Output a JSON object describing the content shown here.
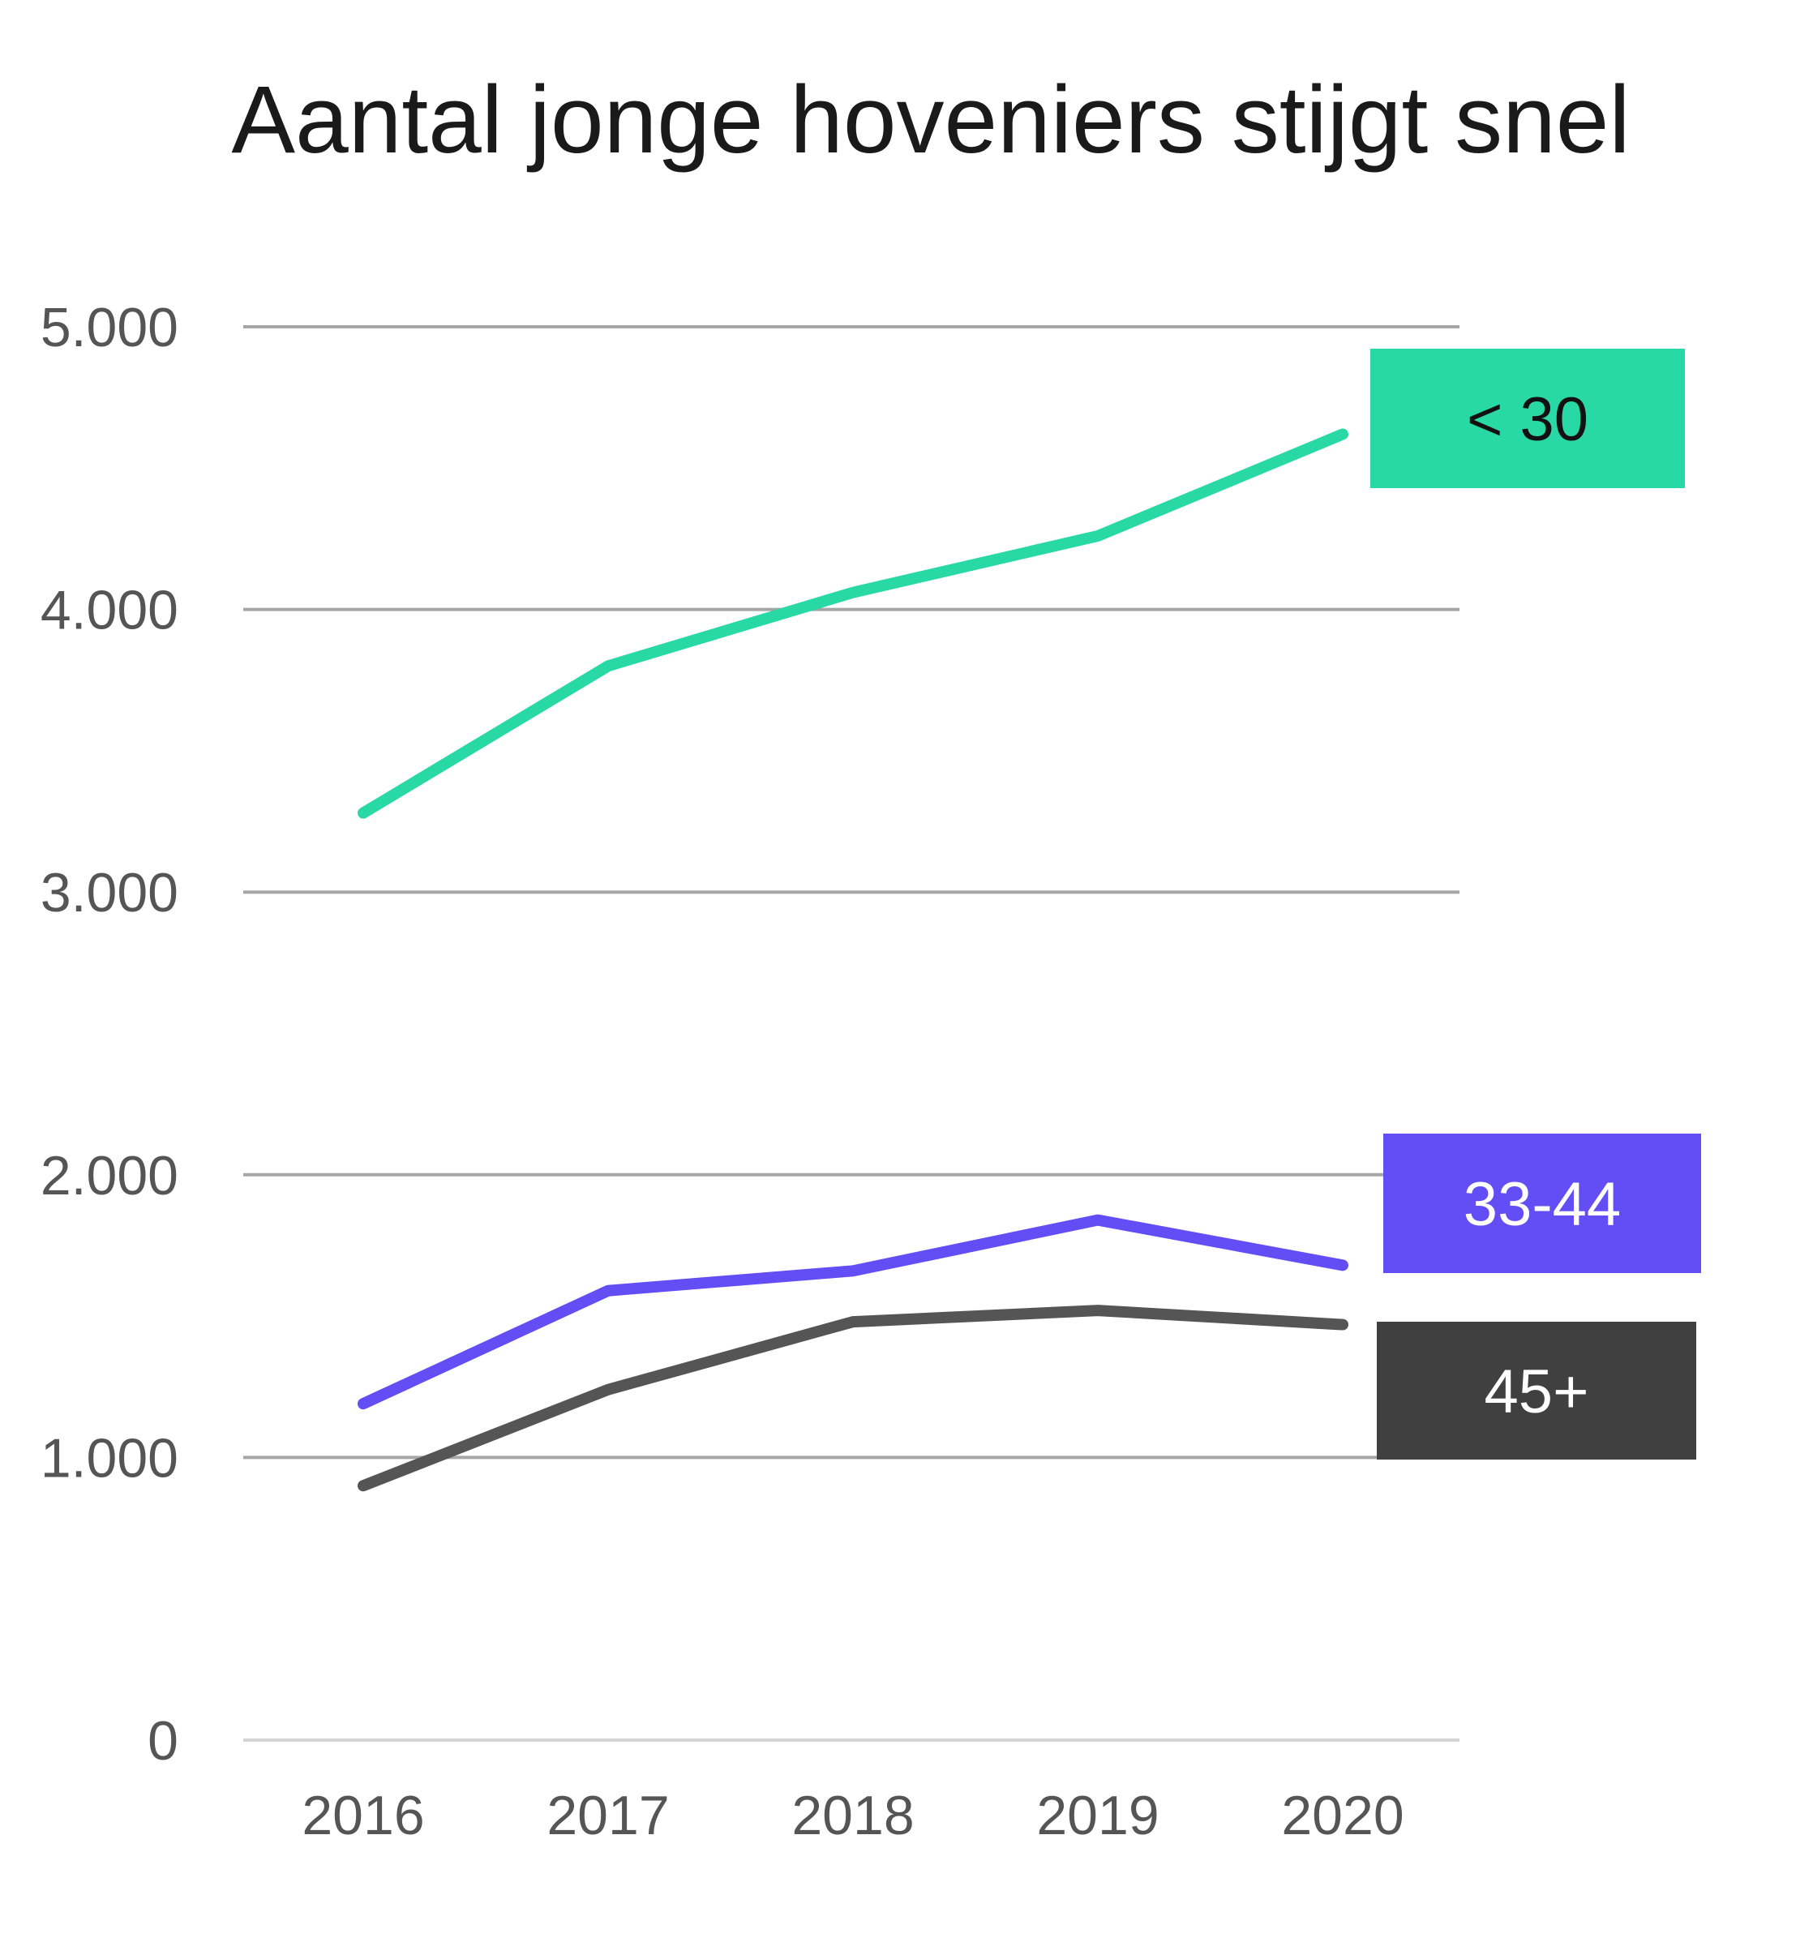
{
  "chart_data": {
    "type": "line",
    "title": "Aantal jonge hoveniers stijgt snel",
    "categories": [
      "2016",
      "2017",
      "2018",
      "2019",
      "2020"
    ],
    "y_ticks": [
      {
        "value": 0,
        "label": "0"
      },
      {
        "value": 1000,
        "label": "1.000"
      },
      {
        "value": 2000,
        "label": "2.000"
      },
      {
        "value": 3000,
        "label": "3.000"
      },
      {
        "value": 4000,
        "label": "4.000"
      },
      {
        "value": 5000,
        "label": "5.000"
      }
    ],
    "ylim": [
      0,
      5000
    ],
    "grid": true,
    "series": [
      {
        "name": "< 30",
        "values": [
          3280,
          3800,
          4060,
          4260,
          4620
        ],
        "color": "#29d9a5",
        "label_bg": "#29d9a5",
        "label_color": "#111111"
      },
      {
        "name": "33-44",
        "values": [
          1190,
          1590,
          1660,
          1840,
          1680
        ],
        "color": "#634ef5",
        "label_bg": "#634ef5",
        "label_color": "#ffffff"
      },
      {
        "name": "45+",
        "values": [
          900,
          1240,
          1480,
          1520,
          1470
        ],
        "color": "#555555",
        "label_bg": "#404040",
        "label_color": "#ffffff"
      }
    ]
  }
}
